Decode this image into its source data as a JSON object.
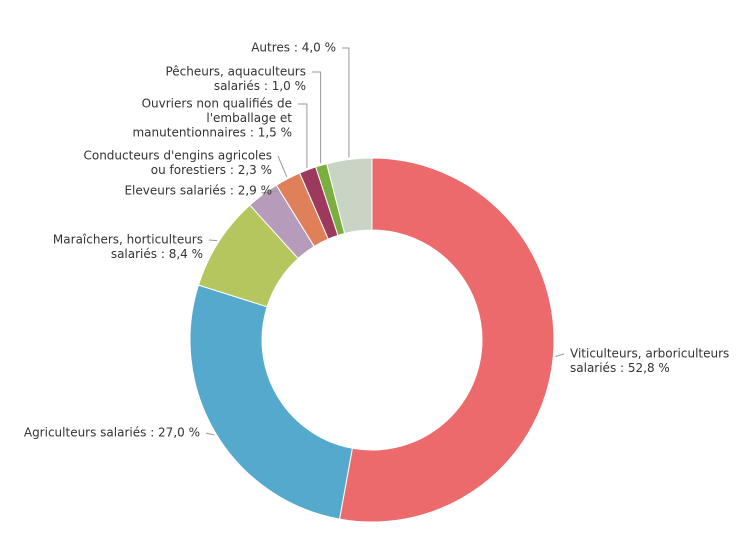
{
  "chart_data": {
    "type": "donut",
    "labels": [
      [
        "Viticulteurs, arboriculteurs",
        "salariés : 52,8 %"
      ],
      [
        "Agriculteurs salariés : 27,0 %"
      ],
      [
        "Maraîchers, horticulteurs",
        "salariés : 8,4 %"
      ],
      [
        "Eleveurs salariés : 2,9 %"
      ],
      [
        "Conducteurs d'engins agricoles",
        "ou forestiers : 2,3 %"
      ],
      [
        "Ouvriers non qualifiés de",
        "l'emballage et",
        "manutentionnaires : 1,5 %"
      ],
      [
        "Pêcheurs, aquaculteurs",
        "salariés : 1,0 %"
      ],
      [
        "Autres : 4,0 %"
      ]
    ],
    "values": [
      52.8,
      27.0,
      8.4,
      2.9,
      2.3,
      1.5,
      1.0,
      4.0
    ],
    "colors": [
      "#ec6a6c",
      "#55a9cc",
      "#b5c65e",
      "#b79bbb",
      "#e0805a",
      "#9c3a5e",
      "#7aae3f",
      "#c8d5c4"
    ]
  }
}
